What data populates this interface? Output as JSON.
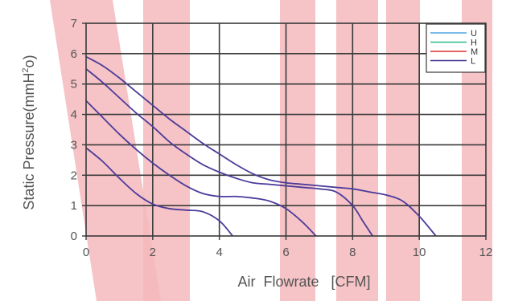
{
  "chart_data": {
    "type": "line",
    "xlabel": "Air  Flowrate   [CFM]",
    "ylabel": "Static Pressure(mmH",
    "ylabel_sup": "2",
    "ylabel_end": "o)",
    "xlim": [
      0,
      12
    ],
    "ylim": [
      0,
      7
    ],
    "x_ticks": [
      "0",
      "2",
      "4",
      "6",
      "8",
      "10",
      "12"
    ],
    "y_ticks": [
      "0",
      "1",
      "2",
      "3",
      "4",
      "5",
      "6",
      "7"
    ],
    "grid": true,
    "legend_position": "top-right",
    "legend": [
      {
        "label": "U",
        "color": "#4da6e0"
      },
      {
        "label": "H",
        "color": "#2db88a"
      },
      {
        "label": "M",
        "color": "#e03030"
      },
      {
        "label": "L",
        "color": "#3b2f8f"
      }
    ],
    "series": [
      {
        "color": "#4b3b9a",
        "points": [
          [
            0,
            5.9
          ],
          [
            0.5,
            5.6
          ],
          [
            1,
            5.2
          ],
          [
            1.5,
            4.75
          ],
          [
            2,
            4.3
          ],
          [
            2.5,
            3.85
          ],
          [
            3,
            3.45
          ],
          [
            3.5,
            3.05
          ],
          [
            4,
            2.7
          ],
          [
            4.5,
            2.35
          ],
          [
            5,
            2.05
          ],
          [
            5.5,
            1.85
          ],
          [
            6,
            1.75
          ],
          [
            6.5,
            1.7
          ],
          [
            7,
            1.65
          ],
          [
            7.5,
            1.6
          ],
          [
            8,
            1.55
          ],
          [
            8.5,
            1.45
          ],
          [
            9,
            1.35
          ],
          [
            9.5,
            1.15
          ],
          [
            10,
            0.65
          ],
          [
            10.5,
            0
          ]
        ]
      },
      {
        "color": "#4b3b9a",
        "points": [
          [
            0,
            5.5
          ],
          [
            0.5,
            5.05
          ],
          [
            1,
            4.55
          ],
          [
            1.5,
            4.05
          ],
          [
            2,
            3.6
          ],
          [
            2.5,
            3.1
          ],
          [
            3,
            2.7
          ],
          [
            3.5,
            2.35
          ],
          [
            4,
            2.1
          ],
          [
            4.5,
            1.9
          ],
          [
            5,
            1.75
          ],
          [
            5.5,
            1.7
          ],
          [
            6,
            1.65
          ],
          [
            6.5,
            1.6
          ],
          [
            7,
            1.55
          ],
          [
            7.5,
            1.45
          ],
          [
            8,
            1.0
          ],
          [
            8.3,
            0.5
          ],
          [
            8.6,
            0
          ]
        ]
      },
      {
        "color": "#4b3b9a",
        "points": [
          [
            0,
            4.45
          ],
          [
            0.5,
            3.9
          ],
          [
            1,
            3.35
          ],
          [
            1.5,
            2.85
          ],
          [
            2,
            2.4
          ],
          [
            2.5,
            2.0
          ],
          [
            3,
            1.65
          ],
          [
            3.5,
            1.4
          ],
          [
            4,
            1.3
          ],
          [
            4.5,
            1.3
          ],
          [
            5,
            1.25
          ],
          [
            5.5,
            1.15
          ],
          [
            6,
            0.9
          ],
          [
            6.5,
            0.45
          ],
          [
            6.9,
            0
          ]
        ]
      },
      {
        "color": "#4b3b9a",
        "points": [
          [
            0,
            2.9
          ],
          [
            0.5,
            2.45
          ],
          [
            1,
            1.9
          ],
          [
            1.5,
            1.4
          ],
          [
            2,
            1.05
          ],
          [
            2.5,
            0.9
          ],
          [
            3,
            0.85
          ],
          [
            3.5,
            0.8
          ],
          [
            4,
            0.5
          ],
          [
            4.4,
            0
          ]
        ]
      }
    ]
  }
}
